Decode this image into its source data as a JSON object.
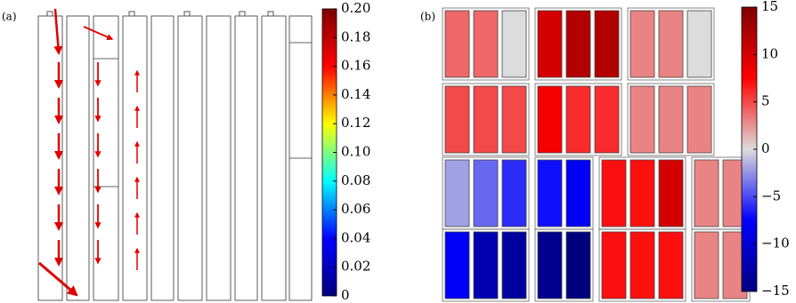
{
  "chart_data": [
    {
      "type": "vector-field",
      "label": "(a)",
      "zlim": [
        0,
        0.2
      ],
      "zticks": [
        0,
        {
          "value": 0.02,
          "label": "0.02"
        },
        {
          "value": 0.04,
          "label": "0.04"
        },
        {
          "value": 0.06,
          "label": "0.06"
        },
        {
          "value": 0.08,
          "label": "0.08"
        },
        {
          "value": 0.1,
          "label": "0.10"
        },
        {
          "value": 0.12,
          "label": "0.12"
        },
        {
          "value": 0.14,
          "label": "0.14"
        },
        {
          "value": 0.16,
          "label": "0.16"
        },
        {
          "value": 0.18,
          "label": "0.18"
        },
        {
          "value": 0.2,
          "label": "0.20"
        }
      ],
      "colormap": [
        "#00007f",
        "#0000ff",
        "#00ffff",
        "#ffff00",
        "#ff0000",
        "#7f0000"
      ]
    },
    {
      "type": "heatmap",
      "label": "(b)",
      "rows": [
        [
          [
            4,
            4,
            0
          ],
          [
            10,
            12,
            12
          ],
          [
            3,
            3,
            0
          ]
        ],
        [
          [
            5,
            5,
            5
          ],
          [
            8,
            6,
            6
          ],
          [
            3,
            3,
            3
          ]
        ],
        [
          [
            -2,
            -4,
            -6
          ],
          [
            -7,
            -8
          ],
          [
            7,
            7,
            10
          ],
          [
            3,
            3
          ]
        ],
        [
          [
            -8,
            -12,
            -13
          ],
          [
            -14,
            -15
          ],
          [
            7,
            7,
            7
          ],
          [
            3,
            3
          ]
        ]
      ],
      "zlim": [
        -15,
        15
      ],
      "zticks": [
        {
          "value": -15,
          "label": "−15"
        },
        {
          "value": -10,
          "label": "−10"
        },
        {
          "value": -5,
          "label": "−5"
        },
        0,
        5,
        10,
        15
      ],
      "colormap": [
        "#00007f",
        "#0000ff",
        "#dcdcdc",
        "#ff0000",
        "#7f0000"
      ]
    }
  ]
}
